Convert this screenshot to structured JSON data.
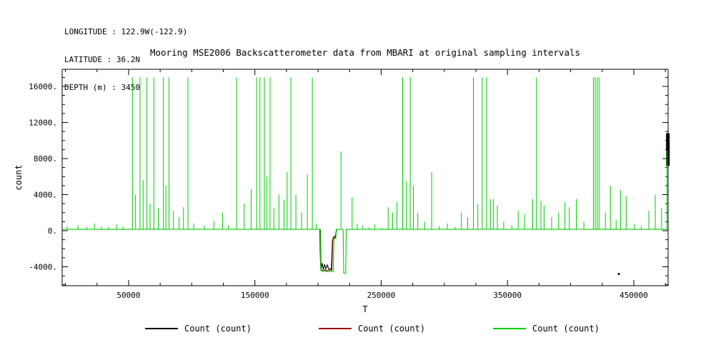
{
  "header": {
    "longitude": "LONGITUDE : 122.9W(-122.9)",
    "latitude": "LATITUDE : 36.2N",
    "depth": "DEPTH (m) : 3450"
  },
  "title": "Mooring MSE2006 Backscatterometer data from MBARI at original sampling intervals",
  "legend": {
    "items": [
      {
        "label": "Count (count)",
        "color": "#000000"
      },
      {
        "label": "Count (count)",
        "color": "#990000"
      },
      {
        "label": "Count (count)",
        "color": "#00cc00"
      }
    ]
  },
  "chart_data": {
    "type": "line",
    "title": "Mooring MSE2006 Backscatterometer data from MBARI at original sampling intervals",
    "xlabel": "T",
    "ylabel": "count",
    "xlim": [
      -2600,
      477200
    ],
    "ylim": [
      -6100,
      17900
    ],
    "xticks": [
      50000,
      150000,
      250000,
      350000,
      450000
    ],
    "xtick_labels": [
      "50000",
      "150000",
      "250000",
      "350000",
      "450000"
    ],
    "yticks": [
      -4000,
      0,
      4000,
      8000,
      12000,
      16000
    ],
    "ytick_labels": [
      "-4000.",
      "0.",
      "4000.",
      "8000.",
      "12000.",
      "16000."
    ],
    "x_minor_step": 25000,
    "y_minor_step": 1000,
    "grid": false,
    "legend_position": "bottom",
    "series": [
      {
        "name": "Count (count)",
        "color": "#000000",
        "polyline": [
          [
            201900,
            100
          ],
          [
            202400,
            -4250
          ],
          [
            203200,
            -3600
          ],
          [
            204200,
            -4300
          ],
          [
            205200,
            -3700
          ],
          [
            206200,
            -4250
          ],
          [
            207400,
            -3800
          ],
          [
            208600,
            -4300
          ],
          [
            209800,
            -4250
          ],
          [
            210900,
            -4300
          ],
          [
            211600,
            -1000
          ],
          [
            212300,
            -700
          ],
          [
            213400,
            -750
          ],
          [
            214300,
            -300
          ],
          [
            214700,
            100
          ]
        ],
        "marks": [
          {
            "type": "vline",
            "x": 477000,
            "y1": 7200,
            "y2": 10800,
            "w": 5
          },
          {
            "type": "dot",
            "x": 438200,
            "y": -4800,
            "r": 1.5
          }
        ]
      },
      {
        "name": "Count (count)",
        "color": "#990000",
        "polyline": [
          [
            201300,
            100
          ],
          [
            201700,
            -2600
          ],
          [
            202300,
            -4350
          ],
          [
            203800,
            -4400
          ],
          [
            205500,
            -4350
          ],
          [
            207200,
            -4450
          ],
          [
            208900,
            -4350
          ],
          [
            210400,
            -4400
          ],
          [
            211400,
            -1050
          ],
          [
            212600,
            -800
          ],
          [
            213800,
            -500
          ],
          [
            214500,
            50
          ]
        ]
      },
      {
        "name": "Count (count)",
        "color": "#00cc00",
        "baseline": 150,
        "polyline": [
          [
            -2000,
            150
          ],
          [
            201700,
            150
          ],
          [
            202200,
            -4400
          ],
          [
            203500,
            -4500
          ],
          [
            205000,
            -4450
          ],
          [
            206500,
            -4550
          ],
          [
            208000,
            -4500
          ],
          [
            209500,
            -4550
          ],
          [
            211000,
            -4500
          ],
          [
            212000,
            -4550
          ],
          [
            212600,
            -900
          ],
          [
            213600,
            -850
          ],
          [
            214100,
            -850
          ],
          [
            214400,
            150
          ],
          [
            219900,
            150
          ],
          [
            220300,
            -4700
          ],
          [
            221200,
            -4750
          ],
          [
            221900,
            -4700
          ],
          [
            222300,
            150
          ],
          [
            477000,
            150
          ]
        ],
        "spikes": [
          [
            1500,
            500
          ],
          [
            10000,
            600
          ],
          [
            17000,
            400
          ],
          [
            23000,
            800
          ],
          [
            28500,
            500
          ],
          [
            34000,
            400
          ],
          [
            40500,
            700
          ],
          [
            45500,
            500
          ],
          [
            53000,
            17000
          ],
          [
            55500,
            4000
          ],
          [
            59000,
            17000
          ],
          [
            61500,
            5600
          ],
          [
            64500,
            17000
          ],
          [
            67000,
            3000
          ],
          [
            70000,
            17000
          ],
          [
            73500,
            2500
          ],
          [
            77500,
            17000
          ],
          [
            79500,
            5000
          ],
          [
            82000,
            17000
          ],
          [
            85500,
            2200
          ],
          [
            90000,
            1500
          ],
          [
            93500,
            2600
          ],
          [
            97000,
            17000
          ],
          [
            101500,
            800
          ],
          [
            110000,
            600
          ],
          [
            117500,
            1100
          ],
          [
            124500,
            2000
          ],
          [
            129000,
            600
          ],
          [
            135500,
            17000
          ],
          [
            141500,
            3000
          ],
          [
            147000,
            4600
          ],
          [
            151500,
            17000
          ],
          [
            154000,
            17000
          ],
          [
            157500,
            17000
          ],
          [
            159500,
            6000
          ],
          [
            162000,
            17000
          ],
          [
            165000,
            2500
          ],
          [
            169000,
            4000
          ],
          [
            173000,
            3400
          ],
          [
            175500,
            6500
          ],
          [
            178500,
            17000
          ],
          [
            182500,
            4000
          ],
          [
            187000,
            2000
          ],
          [
            191500,
            6200
          ],
          [
            195500,
            17000
          ],
          [
            198500,
            800
          ],
          [
            218200,
            8800
          ],
          [
            227000,
            3700
          ],
          [
            231000,
            800
          ],
          [
            235500,
            600
          ],
          [
            240500,
            400
          ],
          [
            245000,
            700
          ],
          [
            250500,
            300
          ],
          [
            255500,
            2600
          ],
          [
            259000,
            2000
          ],
          [
            262500,
            3200
          ],
          [
            267000,
            17000
          ],
          [
            270000,
            5500
          ],
          [
            273000,
            17000
          ],
          [
            275500,
            5000
          ],
          [
            279000,
            2000
          ],
          [
            284500,
            1000
          ],
          [
            290000,
            6500
          ],
          [
            296000,
            500
          ],
          [
            302500,
            800
          ],
          [
            308500,
            400
          ],
          [
            313500,
            2000
          ],
          [
            318500,
            1500
          ],
          [
            323000,
            17000
          ],
          [
            326500,
            3000
          ],
          [
            330000,
            17000
          ],
          [
            333500,
            17000
          ],
          [
            336500,
            3500
          ],
          [
            339000,
            3500
          ],
          [
            342000,
            2800
          ],
          [
            347000,
            1000
          ],
          [
            353500,
            600
          ],
          [
            358500,
            2200
          ],
          [
            363500,
            1800
          ],
          [
            370000,
            3500
          ],
          [
            373000,
            17000
          ],
          [
            376500,
            3300
          ],
          [
            379000,
            2800
          ],
          [
            385000,
            1500
          ],
          [
            390500,
            2000
          ],
          [
            395500,
            3200
          ],
          [
            399000,
            2600
          ],
          [
            404500,
            3500
          ],
          [
            410500,
            1000
          ],
          [
            418000,
            17000
          ],
          [
            419500,
            17000
          ],
          [
            421000,
            17000
          ],
          [
            422500,
            17000
          ],
          [
            427500,
            2000
          ],
          [
            431500,
            5000
          ],
          [
            436000,
            1200
          ],
          [
            439500,
            4500
          ],
          [
            444000,
            3800
          ],
          [
            450500,
            700
          ],
          [
            456000,
            500
          ],
          [
            462000,
            2200
          ],
          [
            467000,
            4000
          ],
          [
            472000,
            2500
          ],
          [
            476300,
            8900
          ]
        ]
      }
    ]
  }
}
